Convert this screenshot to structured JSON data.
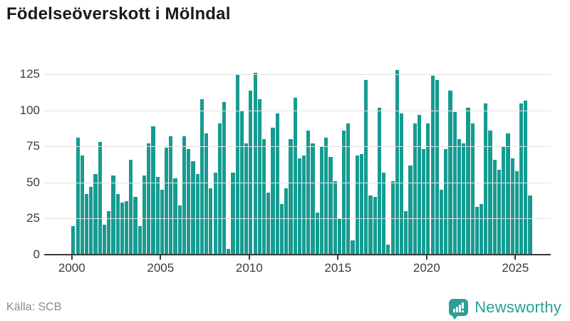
{
  "title": "Födelseöverskott i Mölndal",
  "source_label": "Källa: SCB",
  "logo": {
    "text": "Newsworthy",
    "icon": "speech-bubble-bar-chart",
    "color": "#2aa096"
  },
  "colors": {
    "bar": "#169b91",
    "gridline": "#e2e2e2",
    "axis": "#3a3a3a",
    "title": "#1a1a1a",
    "source_text": "#8b8b8b"
  },
  "y_axis": {
    "tick_labels": [
      "0",
      "25",
      "50",
      "75",
      "100",
      "125"
    ],
    "tick_values": [
      0,
      25,
      50,
      75,
      100,
      125
    ]
  },
  "x_axis": {
    "tick_labels": [
      "2000",
      "2005",
      "2010",
      "2015",
      "2020",
      "2025"
    ]
  },
  "chart_data": {
    "type": "bar",
    "title": "Födelseöverskott i Mölndal",
    "xlabel": "",
    "ylabel": "",
    "ylim": [
      0,
      132
    ],
    "grid": true,
    "legend": "none",
    "frequency": "quarterly",
    "periods": [
      "2000Q1",
      "2000Q2",
      "2000Q3",
      "2000Q4",
      "2001Q1",
      "2001Q2",
      "2001Q3",
      "2001Q4",
      "2002Q1",
      "2002Q2",
      "2002Q3",
      "2002Q4",
      "2003Q1",
      "2003Q2",
      "2003Q3",
      "2003Q4",
      "2004Q1",
      "2004Q2",
      "2004Q3",
      "2004Q4",
      "2005Q1",
      "2005Q2",
      "2005Q3",
      "2005Q4",
      "2006Q1",
      "2006Q2",
      "2006Q3",
      "2006Q4",
      "2007Q1",
      "2007Q2",
      "2007Q3",
      "2007Q4",
      "2008Q1",
      "2008Q2",
      "2008Q3",
      "2008Q4",
      "2009Q1",
      "2009Q2",
      "2009Q3",
      "2009Q4",
      "2010Q1",
      "2010Q2",
      "2010Q3",
      "2010Q4",
      "2011Q1",
      "2011Q2",
      "2011Q3",
      "2011Q4",
      "2012Q1",
      "2012Q2",
      "2012Q3",
      "2012Q4",
      "2013Q1",
      "2013Q2",
      "2013Q3",
      "2013Q4",
      "2014Q1",
      "2014Q2",
      "2014Q3",
      "2014Q4",
      "2015Q1",
      "2015Q2",
      "2015Q3",
      "2015Q4",
      "2016Q1",
      "2016Q2",
      "2016Q3",
      "2016Q4",
      "2017Q1",
      "2017Q2",
      "2017Q3",
      "2017Q4",
      "2018Q1",
      "2018Q2",
      "2018Q3",
      "2018Q4",
      "2019Q1",
      "2019Q2",
      "2019Q3",
      "2019Q4",
      "2020Q1",
      "2020Q2",
      "2020Q3",
      "2020Q4",
      "2021Q1",
      "2021Q2",
      "2021Q3",
      "2021Q4",
      "2022Q1",
      "2022Q2",
      "2022Q3",
      "2022Q4",
      "2023Q1",
      "2023Q2",
      "2023Q3",
      "2023Q4",
      "2024Q1",
      "2024Q2",
      "2024Q3",
      "2024Q4",
      "2025Q1",
      "2025Q2",
      "2025Q3",
      "2025Q4"
    ],
    "values": [
      20,
      81,
      69,
      42,
      47,
      56,
      78,
      21,
      30,
      55,
      42,
      36,
      37,
      66,
      40,
      20,
      55,
      77,
      89,
      54,
      45,
      74,
      82,
      53,
      34,
      82,
      73,
      65,
      56,
      108,
      84,
      46,
      57,
      91,
      106,
      4,
      57,
      125,
      100,
      77,
      114,
      126,
      108,
      80,
      43,
      88,
      98,
      35,
      46,
      80,
      109,
      67,
      69,
      86,
      77,
      29,
      75,
      81,
      68,
      51,
      25,
      86,
      91,
      10,
      69,
      70,
      121,
      41,
      40,
      102,
      57,
      7,
      51,
      128,
      98,
      30,
      62,
      91,
      97,
      73,
      91,
      124,
      121,
      45,
      73,
      114,
      99,
      80,
      77,
      102,
      91,
      33,
      35,
      105,
      86,
      66,
      59,
      75,
      84,
      67,
      58,
      105,
      107,
      41
    ]
  }
}
